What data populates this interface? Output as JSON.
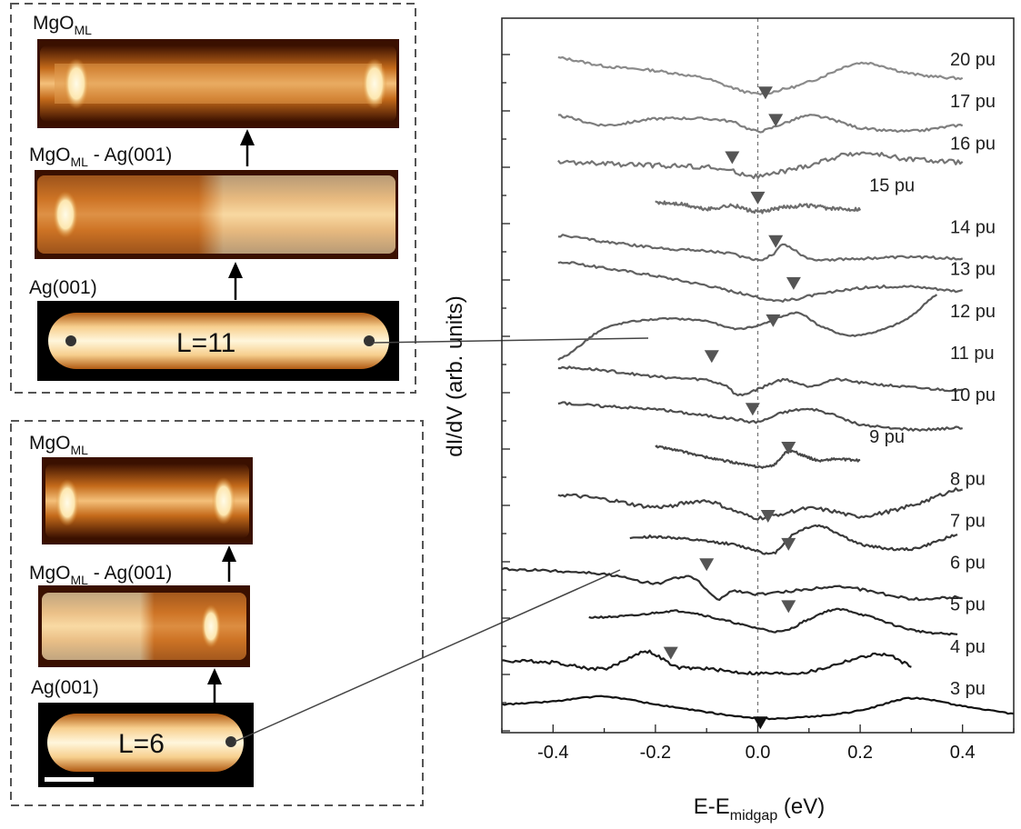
{
  "left_panels": {
    "top": {
      "labels": [
        {
          "main": "MgO",
          "sub": "ML",
          "suffix": ""
        },
        {
          "main": "MgO",
          "sub": "ML",
          "suffix": " - Ag(001)"
        },
        {
          "main": "Ag(001)",
          "sub": "",
          "suffix": ""
        }
      ],
      "length_label": "L=11"
    },
    "bottom": {
      "labels": [
        {
          "main": "MgO",
          "sub": "ML",
          "suffix": ""
        },
        {
          "main": "MgO",
          "sub": "ML",
          "suffix": " - Ag(001)"
        },
        {
          "main": "Ag(001)",
          "sub": "",
          "suffix": ""
        }
      ],
      "length_label": "L=6"
    }
  },
  "chart_data": {
    "type": "line",
    "xlabel": {
      "main": "E-E",
      "sub": "midgap",
      "suffix": " (eV)"
    },
    "ylabel": "dI/dV (arb. units)",
    "xlim": [
      -0.5,
      0.5
    ],
    "xticks": [
      -0.4,
      -0.2,
      0.0,
      0.2,
      0.4
    ],
    "xtick_labels": [
      "-0.4",
      "-0.2",
      "0.0",
      "0.2",
      "0.4"
    ],
    "vline_x": 0.0,
    "series": [
      {
        "name": "20 pu",
        "color": "#8a8a8a",
        "x_range": [
          -0.39,
          0.4
        ],
        "x": [
          -0.39,
          -0.3,
          -0.2,
          -0.1,
          -0.05,
          0,
          0.05,
          0.1,
          0.2,
          0.3,
          0.4
        ],
        "y": [
          0.72,
          0.45,
          0.3,
          0.05,
          -0.25,
          -0.45,
          -0.3,
          -0.05,
          0.55,
          0.2,
          0.05
        ],
        "noise": 0.04,
        "marker_x": 0.015,
        "marker_y": -0.42
      },
      {
        "name": "17 pu",
        "color": "#7d7d7d",
        "x_range": [
          -0.39,
          0.4
        ],
        "x": [
          -0.39,
          -0.3,
          -0.2,
          -0.1,
          -0.05,
          0,
          0.05,
          0.1,
          0.15,
          0.2,
          0.3,
          0.4
        ],
        "y": [
          0.2,
          -0.1,
          0.1,
          0.1,
          0.0,
          -0.3,
          -0.05,
          0.2,
          0.05,
          -0.2,
          -0.3,
          -0.1
        ],
        "noise": 0.04,
        "marker_x": 0.035,
        "marker_y": 0.05
      },
      {
        "name": "16 pu",
        "color": "#747474",
        "x_range": [
          -0.39,
          0.4
        ],
        "x": [
          -0.39,
          -0.3,
          -0.2,
          -0.1,
          -0.05,
          0,
          0.05,
          0.1,
          0.15,
          0.2,
          0.3,
          0.4
        ],
        "y": [
          0.05,
          0.0,
          -0.05,
          -0.1,
          -0.25,
          -0.4,
          -0.25,
          -0.05,
          0.2,
          0.35,
          0.15,
          0.05
        ],
        "noise": 0.08,
        "marker_x": -0.05,
        "marker_y": 0.2
      },
      {
        "name": "15 pu",
        "color": "#6d6d6d",
        "x_range": [
          -0.2,
          0.2
        ],
        "x": [
          -0.2,
          -0.15,
          -0.1,
          -0.05,
          0,
          0.05,
          0.1,
          0.15,
          0.2
        ],
        "y": [
          0.1,
          0.05,
          -0.1,
          0.0,
          -0.2,
          -0.05,
          0.0,
          -0.1,
          -0.1
        ],
        "noise": 0.06,
        "marker_x": 0.0,
        "marker_y": 0.25
      },
      {
        "name": "14 pu",
        "color": "#676767",
        "x_range": [
          -0.39,
          0.4
        ],
        "x": [
          -0.39,
          -0.3,
          -0.2,
          -0.1,
          -0.05,
          0,
          0.03,
          0.05,
          0.1,
          0.2,
          0.3,
          0.4
        ],
        "y": [
          0.4,
          0.2,
          0.0,
          -0.1,
          -0.2,
          -0.4,
          -0.2,
          0.1,
          -0.35,
          -0.35,
          -0.3,
          -0.35
        ],
        "noise": 0.04,
        "marker_x": 0.035,
        "marker_y": 0.2
      },
      {
        "name": "13 pu",
        "color": "#606060",
        "x_range": [
          -0.39,
          0.4
        ],
        "x": [
          -0.39,
          -0.3,
          -0.2,
          -0.1,
          -0.05,
          0,
          0.05,
          0.1,
          0.2,
          0.3,
          0.4
        ],
        "y": [
          0.9,
          0.7,
          0.45,
          0.15,
          -0.05,
          -0.25,
          -0.35,
          -0.2,
          0.05,
          0.1,
          -0.05
        ],
        "noise": 0.04,
        "marker_x": 0.07,
        "marker_y": 0.2
      },
      {
        "name": "12 pu",
        "color": "#5a5a5a",
        "x_range": [
          -0.39,
          0.35
        ],
        "x": [
          -0.39,
          -0.3,
          -0.2,
          -0.1,
          -0.05,
          0,
          0.05,
          0.08,
          0.12,
          0.17,
          0.2,
          0.25,
          0.3,
          0.35
        ],
        "y": [
          -0.9,
          0.1,
          0.4,
          0.35,
          0.1,
          0.2,
          0.5,
          0.6,
          0.2,
          -0.1,
          -0.1,
          0.1,
          0.5,
          1.2
        ],
        "noise": 0.025,
        "marker_x": 0.03,
        "marker_y": 0.35
      },
      {
        "name": "11 pu",
        "color": "#545454",
        "x_range": [
          -0.39,
          0.4
        ],
        "x": [
          -0.39,
          -0.3,
          -0.2,
          -0.1,
          -0.08,
          -0.06,
          -0.04,
          0,
          0.05,
          0.1,
          0.15,
          0.2,
          0.3,
          0.4
        ],
        "y": [
          0.2,
          0.1,
          -0.1,
          -0.2,
          -0.3,
          -0.4,
          -0.7,
          -0.5,
          -0.2,
          -0.4,
          -0.2,
          -0.3,
          -0.45,
          -0.55
        ],
        "noise": 0.04,
        "marker_x": -0.09,
        "marker_y": 0.55
      },
      {
        "name": "10 pu",
        "color": "#4e4e4e",
        "x_range": [
          -0.39,
          0.4
        ],
        "x": [
          -0.39,
          -0.3,
          -0.2,
          -0.1,
          -0.05,
          0,
          0.05,
          0.1,
          0.15,
          0.2,
          0.3,
          0.4
        ],
        "y": [
          0.4,
          0.3,
          0.2,
          0.0,
          -0.1,
          -0.2,
          0.1,
          0.2,
          0.0,
          -0.3,
          -0.45,
          -0.4
        ],
        "noise": 0.04,
        "marker_x": -0.01,
        "marker_y": 0.2
      },
      {
        "name": "9 pu",
        "color": "#484848",
        "x_range": [
          -0.2,
          0.2
        ],
        "x": [
          -0.2,
          -0.15,
          -0.1,
          -0.05,
          0,
          0.03,
          0.06,
          0.09,
          0.12,
          0.15,
          0.2
        ],
        "y": [
          0.35,
          0.2,
          0.0,
          -0.15,
          -0.3,
          -0.25,
          0.2,
          0.05,
          -0.1,
          -0.05,
          -0.1
        ],
        "noise": 0.035,
        "marker_x": 0.06,
        "marker_y": 0.3
      },
      {
        "name": "8 pu",
        "color": "#424242",
        "x_range": [
          -0.39,
          0.4
        ],
        "x": [
          -0.39,
          -0.3,
          -0.2,
          -0.1,
          -0.05,
          0,
          0.05,
          0.1,
          0.15,
          0.2,
          0.3,
          0.4
        ],
        "y": [
          0.15,
          0.0,
          -0.25,
          -0.05,
          -0.35,
          -0.6,
          -0.45,
          -0.3,
          -0.4,
          -0.55,
          -0.2,
          0.35
        ],
        "noise": 0.06,
        "marker_x": 0.02,
        "marker_y": -0.55
      },
      {
        "name": "7 pu",
        "color": "#3a3a3a",
        "x_range": [
          -0.25,
          0.39
        ],
        "x": [
          -0.25,
          -0.2,
          -0.1,
          -0.05,
          0,
          0.03,
          0.06,
          0.09,
          0.12,
          0.15,
          0.2,
          0.3,
          0.39
        ],
        "y": [
          0.1,
          0.15,
          0.0,
          -0.1,
          -0.3,
          -0.4,
          0.1,
          0.4,
          0.5,
          0.3,
          -0.1,
          -0.25,
          0.2
        ],
        "noise": 0.04,
        "marker_x": 0.06,
        "marker_y": -0.1
      },
      {
        "name": "6 pu",
        "color": "#303030",
        "x_range": [
          -0.5,
          0.4
        ],
        "x": [
          -0.5,
          -0.4,
          -0.3,
          -0.2,
          -0.15,
          -0.12,
          -0.08,
          -0.05,
          0,
          0.1,
          0.15,
          0.2,
          0.3,
          0.4
        ],
        "y": [
          0.45,
          0.4,
          0.3,
          0.0,
          0.2,
          0.1,
          -0.5,
          -0.25,
          -0.35,
          -0.2,
          -0.1,
          -0.2,
          -0.5,
          -0.45
        ],
        "noise": 0.04,
        "marker_x": -0.1,
        "marker_y": 0.6
      },
      {
        "name": "5 pu",
        "color": "#262626",
        "x_range": [
          -0.33,
          0.39
        ],
        "x": [
          -0.33,
          -0.25,
          -0.15,
          -0.05,
          0,
          0.05,
          0.1,
          0.15,
          0.2,
          0.3,
          0.39
        ],
        "y": [
          0.25,
          0.3,
          0.45,
          0.1,
          -0.1,
          -0.2,
          0.2,
          0.5,
          0.35,
          -0.15,
          -0.3
        ],
        "noise": 0.03,
        "marker_x": 0.06,
        "marker_y": 0.6
      },
      {
        "name": "4 pu",
        "color": "#1c1c1c",
        "x_range": [
          -0.5,
          0.3
        ],
        "x": [
          -0.5,
          -0.4,
          -0.3,
          -0.22,
          -0.19,
          -0.16,
          -0.1,
          -0.05,
          0,
          0.1,
          0.2,
          0.25,
          0.3
        ],
        "y": [
          0.2,
          0.15,
          -0.05,
          0.5,
          0.3,
          0.0,
          -0.05,
          -0.15,
          -0.2,
          -0.15,
          0.3,
          0.4,
          0.05
        ],
        "noise": 0.05,
        "marker_x": -0.17,
        "marker_y": 0.45
      },
      {
        "name": "3 pu",
        "color": "#111111",
        "x_range": [
          -0.5,
          0.5
        ],
        "x": [
          -0.5,
          -0.4,
          -0.3,
          -0.2,
          -0.1,
          0,
          0.1,
          0.2,
          0.3,
          0.4,
          0.5
        ],
        "y": [
          0.15,
          0.25,
          0.4,
          0.15,
          -0.1,
          -0.3,
          -0.25,
          -0.05,
          0.35,
          0.1,
          -0.15
        ],
        "noise": 0.02,
        "marker_x": 0.005,
        "marker_y": -0.45
      }
    ]
  }
}
